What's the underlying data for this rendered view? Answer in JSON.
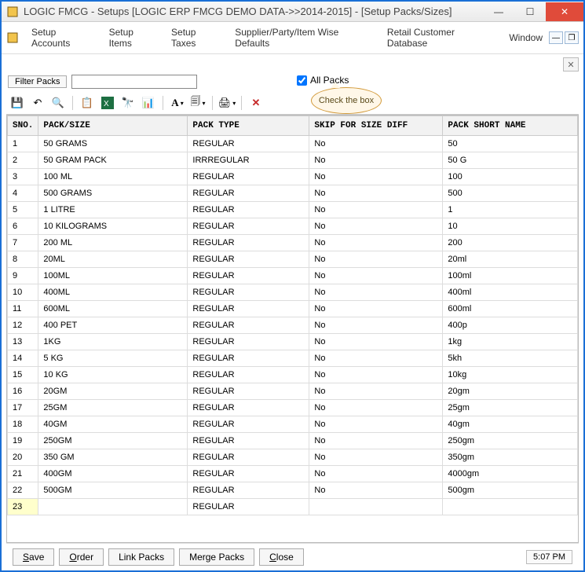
{
  "window": {
    "title": "LOGIC FMCG - Setups  [LOGIC ERP FMCG DEMO DATA->>2014-2015] - [Setup Packs/Sizes]"
  },
  "menu": {
    "items": [
      "Setup Accounts",
      "Setup Items",
      "Setup Taxes",
      "Supplier/Party/Item Wise Defaults",
      "Retail Customer Database",
      "Window"
    ]
  },
  "filter": {
    "button_label": "Filter Packs",
    "value": "",
    "allpacks_label": "All Packs",
    "allpacks_checked": true,
    "callout_text": "Check the box"
  },
  "toolbar_icons": [
    "save",
    "undo",
    "magnify",
    "copy",
    "excel",
    "binoculars",
    "chart",
    "font",
    "page",
    "print",
    "delete"
  ],
  "grid": {
    "columns": [
      "SNO.",
      "PACK/SIZE",
      "PACK TYPE",
      "SKIP FOR SIZE DIFF",
      "PACK SHORT NAME"
    ],
    "rows": [
      {
        "sno": "1",
        "pack": "50 GRAMS",
        "type": "REGULAR",
        "skip": "No",
        "short": "50"
      },
      {
        "sno": "2",
        "pack": "50 GRAM PACK",
        "type": "IRRREGULAR",
        "skip": "No",
        "short": "50 G"
      },
      {
        "sno": "3",
        "pack": "100 ML",
        "type": "REGULAR",
        "skip": "No",
        "short": "100"
      },
      {
        "sno": "4",
        "pack": "500 GRAMS",
        "type": "REGULAR",
        "skip": "No",
        "short": "500"
      },
      {
        "sno": "5",
        "pack": "1 LITRE",
        "type": "REGULAR",
        "skip": "No",
        "short": "1"
      },
      {
        "sno": "6",
        "pack": "10 KILOGRAMS",
        "type": "REGULAR",
        "skip": "No",
        "short": "10"
      },
      {
        "sno": "7",
        "pack": "200 ML",
        "type": "REGULAR",
        "skip": "No",
        "short": "200"
      },
      {
        "sno": "8",
        "pack": "20ML",
        "type": "REGULAR",
        "skip": "No",
        "short": "20ml"
      },
      {
        "sno": "9",
        "pack": "100ML",
        "type": "REGULAR",
        "skip": "No",
        "short": "100ml"
      },
      {
        "sno": "10",
        "pack": "400ML",
        "type": "REGULAR",
        "skip": "No",
        "short": "400ml"
      },
      {
        "sno": "11",
        "pack": "600ML",
        "type": "REGULAR",
        "skip": "No",
        "short": "600ml"
      },
      {
        "sno": "12",
        "pack": "400 PET",
        "type": "REGULAR",
        "skip": "No",
        "short": "400p"
      },
      {
        "sno": "13",
        "pack": "1KG",
        "type": "REGULAR",
        "skip": "No",
        "short": "1kg"
      },
      {
        "sno": "14",
        "pack": "5 KG",
        "type": "REGULAR",
        "skip": "No",
        "short": "5kh"
      },
      {
        "sno": "15",
        "pack": "10 KG",
        "type": "REGULAR",
        "skip": "No",
        "short": "10kg"
      },
      {
        "sno": "16",
        "pack": "20GM",
        "type": "REGULAR",
        "skip": "No",
        "short": "20gm"
      },
      {
        "sno": "17",
        "pack": "25GM",
        "type": "REGULAR",
        "skip": "No",
        "short": "25gm"
      },
      {
        "sno": "18",
        "pack": "40GM",
        "type": "REGULAR",
        "skip": "No",
        "short": "40gm"
      },
      {
        "sno": "19",
        "pack": "250GM",
        "type": "REGULAR",
        "skip": "No",
        "short": "250gm"
      },
      {
        "sno": "20",
        "pack": "350 GM",
        "type": "REGULAR",
        "skip": "No",
        "short": "350gm"
      },
      {
        "sno": "21",
        "pack": "400GM",
        "type": "REGULAR",
        "skip": "No",
        "short": "4000gm"
      },
      {
        "sno": "22",
        "pack": "500GM",
        "type": "REGULAR",
        "skip": "No",
        "short": "500gm"
      },
      {
        "sno": "23",
        "pack": "",
        "type": "REGULAR",
        "skip": "",
        "short": ""
      }
    ],
    "header_bg": "#f2f2f2",
    "border_color": "#cccccc",
    "newrow_bg": "#ffffcc"
  },
  "footer": {
    "buttons": [
      {
        "label": "Save",
        "u": "S"
      },
      {
        "label": "Order",
        "u": "O"
      },
      {
        "label": "Link Packs",
        "u": ""
      },
      {
        "label": "Merge Packs",
        "u": ""
      },
      {
        "label": "Close",
        "u": "C"
      }
    ],
    "clock": "5:07 PM"
  },
  "colors": {
    "window_border": "#1a6fd6",
    "close_btn": "#e04b3a"
  }
}
